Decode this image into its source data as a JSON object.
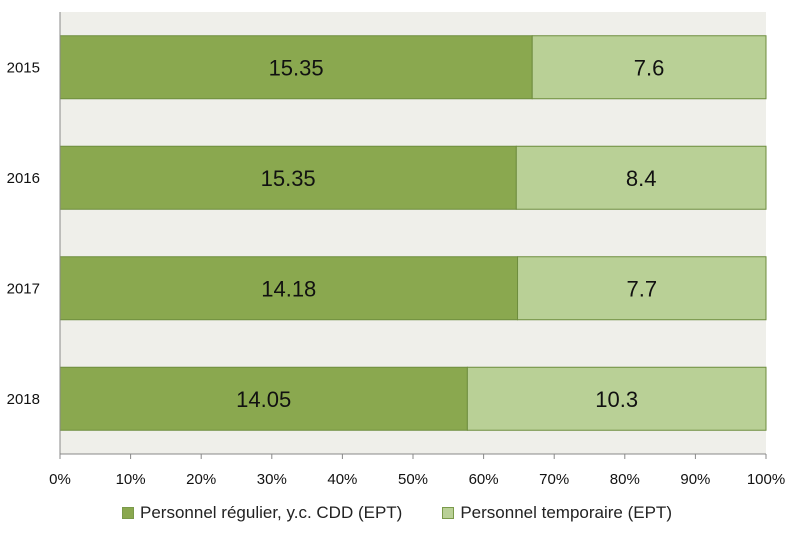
{
  "chart_data": {
    "type": "bar",
    "orientation": "horizontal",
    "stacking": "percent",
    "categories": [
      "2015",
      "2016",
      "2017",
      "2018"
    ],
    "series": [
      {
        "name": "Personnel régulier, y.c. CDD (EPT)",
        "values": [
          15.35,
          15.35,
          14.18,
          14.05
        ],
        "color": "#8aa84f",
        "value_labels": [
          "15.35",
          "15.35",
          "14.18",
          "14.05"
        ]
      },
      {
        "name": "Personnel temporaire (EPT)",
        "values": [
          7.6,
          8.4,
          7.7,
          10.3
        ],
        "color": "#b9d096",
        "value_labels": [
          "7.6",
          "8.4",
          "7.7",
          "10.3"
        ]
      }
    ],
    "xticks": [
      "0%",
      "10%",
      "20%",
      "30%",
      "40%",
      "50%",
      "60%",
      "70%",
      "80%",
      "90%",
      "100%"
    ],
    "xlim": [
      0,
      100
    ],
    "plot_background": "#efefea",
    "grid": false,
    "legend_position": "bottom"
  }
}
